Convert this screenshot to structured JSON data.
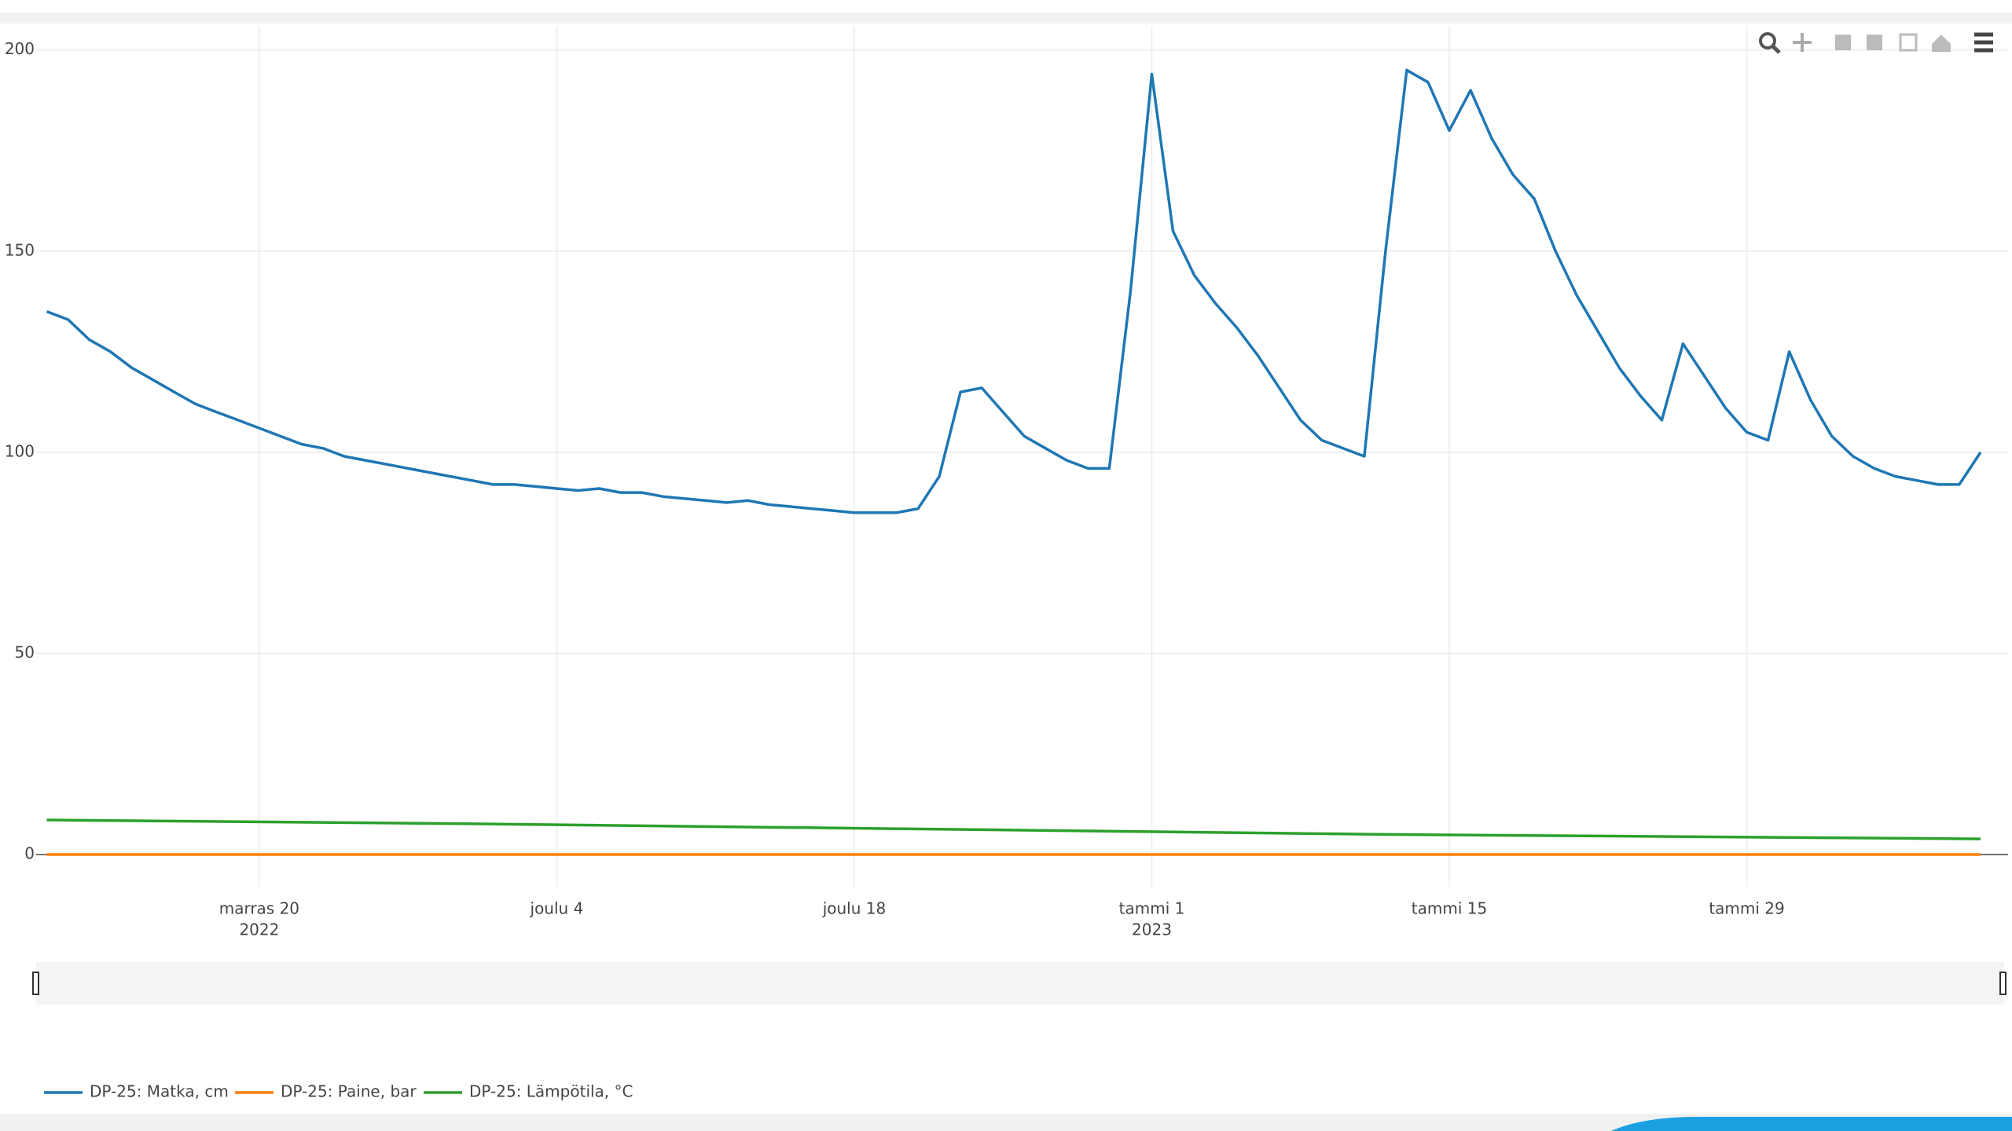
{
  "chart_data": {
    "type": "line",
    "xlim": [
      "2022-11-09T12:00:00Z",
      "2023-02-10T00:00:00Z"
    ],
    "xticks": [
      {
        "value": "2022-11-20",
        "label": "marras 20",
        "year": "2022"
      },
      {
        "value": "2022-12-04",
        "label": "joulu 4"
      },
      {
        "value": "2022-12-18",
        "label": "joulu 18"
      },
      {
        "value": "2023-01-01",
        "label": "tammi 1",
        "year": "2023"
      },
      {
        "value": "2023-01-15",
        "label": "tammi 15"
      },
      {
        "value": "2023-01-29",
        "label": "tammi 29"
      }
    ],
    "ylim": [
      -8,
      206
    ],
    "yticks": [
      0,
      50,
      100,
      150,
      200
    ],
    "grid": true,
    "legend": "bottom-left",
    "series": [
      {
        "name": "DP-25: Matka, cm",
        "color": "#1f77b4",
        "x": [
          "2022-11-10",
          "2022-11-11",
          "2022-11-12",
          "2022-11-13",
          "2022-11-14",
          "2022-11-15",
          "2022-11-16",
          "2022-11-17",
          "2022-11-18",
          "2022-11-19",
          "2022-11-20",
          "2022-11-21",
          "2022-11-22",
          "2022-11-23",
          "2022-11-24",
          "2022-11-25",
          "2022-11-26",
          "2022-11-27",
          "2022-11-28",
          "2022-11-29",
          "2022-11-30",
          "2022-12-01",
          "2022-12-02",
          "2022-12-03",
          "2022-12-04",
          "2022-12-05",
          "2022-12-06",
          "2022-12-07",
          "2022-12-08",
          "2022-12-09",
          "2022-12-10",
          "2022-12-11",
          "2022-12-12",
          "2022-12-13",
          "2022-12-14",
          "2022-12-15",
          "2022-12-16",
          "2022-12-17",
          "2022-12-18",
          "2022-12-19",
          "2022-12-20",
          "2022-12-21",
          "2022-12-22",
          "2022-12-23",
          "2022-12-24",
          "2022-12-25",
          "2022-12-26",
          "2022-12-27",
          "2022-12-28",
          "2022-12-29",
          "2022-12-30",
          "2022-12-31",
          "2023-01-01",
          "2023-01-02",
          "2023-01-03",
          "2023-01-04",
          "2023-01-05",
          "2023-01-06",
          "2023-01-07",
          "2023-01-08",
          "2023-01-09",
          "2023-01-10",
          "2023-01-11",
          "2023-01-12",
          "2023-01-13",
          "2023-01-14",
          "2023-01-15",
          "2023-01-16",
          "2023-01-17",
          "2023-01-18",
          "2023-01-19",
          "2023-01-20",
          "2023-01-21",
          "2023-01-22",
          "2023-01-23",
          "2023-01-24",
          "2023-01-25",
          "2023-01-26",
          "2023-01-27",
          "2023-01-28",
          "2023-01-29",
          "2023-01-30",
          "2023-01-31",
          "2023-02-01",
          "2023-02-02",
          "2023-02-03",
          "2023-02-04",
          "2023-02-05",
          "2023-02-06",
          "2023-02-07",
          "2023-02-08",
          "2023-02-09"
        ],
        "values": [
          135,
          133,
          128,
          125,
          121,
          118,
          115,
          112,
          110,
          108,
          106,
          104,
          102,
          101,
          99,
          98,
          97,
          96,
          95,
          94,
          93,
          92,
          92,
          91.5,
          91,
          90.5,
          91,
          90,
          90,
          89,
          88.5,
          88,
          87.5,
          88,
          87,
          86.5,
          86,
          85.5,
          85,
          85,
          85,
          86,
          94,
          115,
          116,
          110,
          104,
          101,
          98,
          96,
          96,
          140,
          194,
          155,
          144,
          137,
          131,
          124,
          116,
          108,
          103,
          101,
          99,
          150,
          195,
          192,
          180,
          190,
          178,
          169,
          163,
          150,
          139,
          130,
          121,
          114,
          108,
          127,
          119,
          111,
          105,
          103,
          125,
          113,
          104,
          99,
          96,
          94,
          93,
          92,
          92,
          100
        ]
      },
      {
        "name": "DP-25: Paine, bar",
        "color": "#ff7f0e",
        "x": [
          "2022-11-10",
          "2023-02-09"
        ],
        "values": [
          0,
          0
        ]
      },
      {
        "name": "DP-25: Lämpötila, °C",
        "color": "#2ca02c",
        "x": [
          "2022-11-10",
          "2022-12-01",
          "2022-12-22",
          "2023-01-12",
          "2023-02-09"
        ],
        "values": [
          8.6,
          7.6,
          6.3,
          5.0,
          3.9
        ]
      }
    ]
  }
}
